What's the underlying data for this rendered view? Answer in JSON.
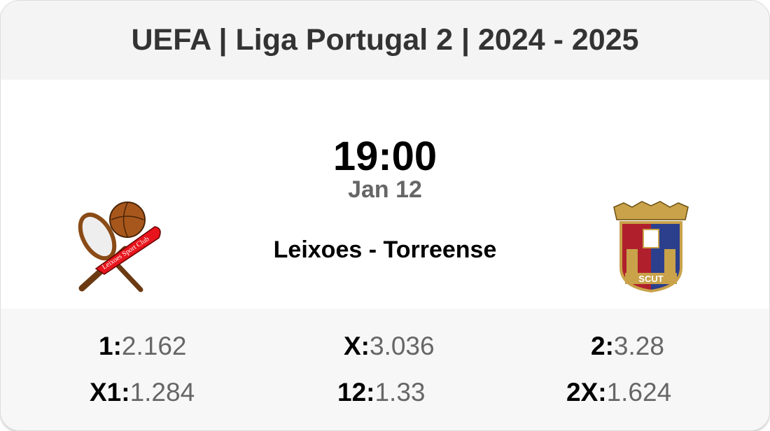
{
  "header": {
    "title": "UEFA | Liga Portugal 2 | 2024 - 2025"
  },
  "match": {
    "time": "19:00",
    "date": "Jan 12",
    "matchup": "Leixoes - Torreense",
    "home_logo_text": "Leixoes Sport Club",
    "away_logo_text": "SCUT"
  },
  "odds": [
    {
      "label": "1:",
      "value": "2.162"
    },
    {
      "label": "X:",
      "value": "3.036"
    },
    {
      "label": "2:",
      "value": "3.28"
    },
    {
      "label": "X1:",
      "value": "1.284"
    },
    {
      "label": "12:",
      "value": "1.33"
    },
    {
      "label": "2X:",
      "value": "1.624"
    }
  ]
}
